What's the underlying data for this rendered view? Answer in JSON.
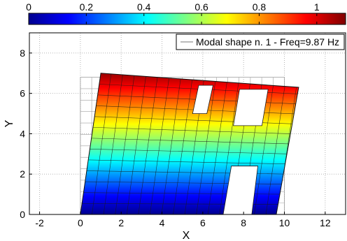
{
  "chart_data": {
    "type": "heatmap",
    "legend_text": "Modal shape n. 1 - Freq=9.87 Hz",
    "legend_placement": "top-right",
    "xlabel": "X",
    "ylabel": "Y",
    "xlim": [
      -2.5,
      13
    ],
    "ylim": [
      0,
      9
    ],
    "x_ticks": [
      -2,
      0,
      2,
      4,
      6,
      8,
      10,
      12
    ],
    "y_ticks": [
      0,
      2,
      4,
      6,
      8
    ],
    "grid": true,
    "colormap": "jet",
    "colorbar": {
      "position": "top",
      "range": [
        0,
        1.1
      ],
      "ticks": [
        0,
        0.2,
        0.4,
        0.6,
        0.8,
        1
      ],
      "tick_labels": [
        "0",
        "0.2",
        "0.4",
        "0.6",
        "0.8",
        "1"
      ]
    },
    "undeformed_frame": {
      "outline": [
        [
          0,
          0
        ],
        [
          10,
          0
        ],
        [
          10,
          6.8
        ],
        [
          0,
          6.8
        ]
      ],
      "grid_divisions": [
        18,
        12
      ]
    },
    "deformed_shape": {
      "outline": [
        [
          0,
          0
        ],
        [
          7.2,
          0
        ],
        [
          8.35,
          0
        ],
        [
          9.6,
          0
        ],
        [
          10.7,
          6.3
        ],
        [
          1.0,
          7.0
        ]
      ],
      "openings": [
        {
          "name": "top-window-left",
          "corners": [
            [
              5.5,
              5.0
            ],
            [
              6.2,
              5.0
            ],
            [
              6.5,
              6.4
            ],
            [
              5.8,
              6.4
            ]
          ]
        },
        {
          "name": "top-window-right",
          "corners": [
            [
              7.5,
              4.4
            ],
            [
              8.9,
              4.4
            ],
            [
              9.2,
              6.2
            ],
            [
              7.8,
              6.2
            ]
          ]
        },
        {
          "name": "lower-opening",
          "corners": [
            [
              7.0,
              0
            ],
            [
              8.4,
              0
            ],
            [
              8.7,
              2.4
            ],
            [
              7.4,
              2.4
            ]
          ]
        }
      ],
      "value_range": [
        0,
        1.1
      ],
      "value_direction": "increases with Y"
    }
  }
}
